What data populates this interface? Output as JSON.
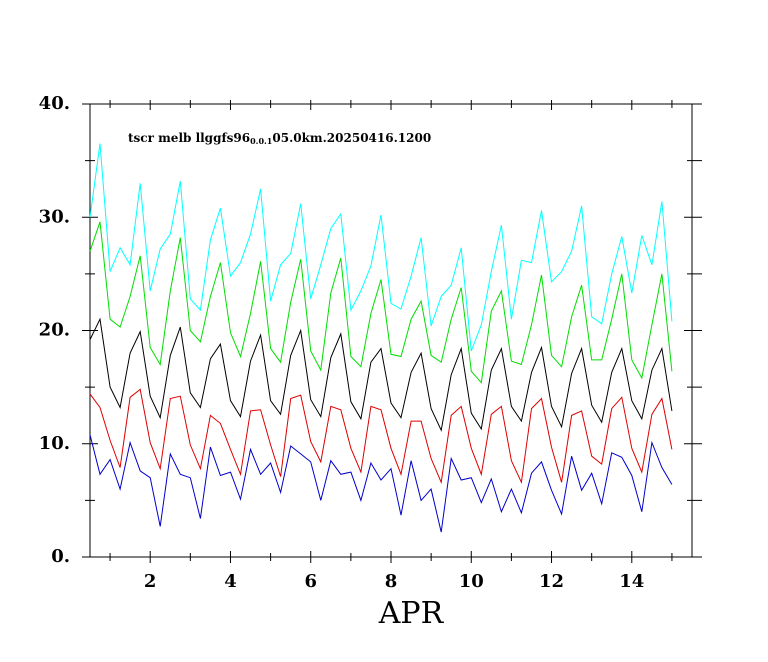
{
  "chart_data": {
    "type": "line",
    "title": {
      "before": "tscr melb llggfs96",
      "subscript": "0.0.1",
      "after": "05.0km.20250416.1200"
    },
    "xlabel": "APR",
    "xlim": [
      0.5,
      15.5
    ],
    "xticks": [
      2,
      4,
      6,
      8,
      10,
      12,
      14
    ],
    "xminor": [
      1,
      3,
      5,
      7,
      9,
      11,
      13,
      15
    ],
    "ylim": [
      0,
      40
    ],
    "yticks": [
      {
        "value": 0,
        "label": "0."
      },
      {
        "value": 10,
        "label": "10."
      },
      {
        "value": 20,
        "label": "20."
      },
      {
        "value": 30,
        "label": "30."
      },
      {
        "value": 40,
        "label": "40."
      }
    ],
    "yminor": [
      5,
      15,
      25,
      35
    ],
    "x": [
      0.5,
      0.75,
      1,
      1.25,
      1.5,
      1.75,
      2,
      2.25,
      2.5,
      2.75,
      3,
      3.25,
      3.5,
      3.75,
      4,
      4.25,
      4.5,
      4.75,
      5,
      5.25,
      5.5,
      5.75,
      6,
      6.25,
      6.5,
      6.75,
      7,
      7.25,
      7.5,
      7.75,
      8,
      8.25,
      8.5,
      8.75,
      9,
      9.25,
      9.5,
      9.75,
      10,
      10.25,
      10.5,
      10.75,
      11,
      11.25,
      11.5,
      11.75,
      12,
      12.25,
      12.5,
      12.75,
      13,
      13.25,
      13.5,
      13.75,
      14,
      14.25,
      14.5,
      14.75,
      15
    ],
    "series": [
      {
        "color": "#00ffff",
        "values": [
          30,
          36.5,
          25.2,
          27.3,
          25.8,
          33,
          23.5,
          27.2,
          28.5,
          33.2,
          22.8,
          21.8,
          28,
          30.8,
          24.8,
          26,
          28.5,
          32.5,
          22.6,
          25.8,
          26.8,
          31.2,
          22.8,
          25.8,
          29,
          30.3,
          21.8,
          23.5,
          25.7,
          30.2,
          22.4,
          21.9,
          24.8,
          28.2,
          20.4,
          23,
          24,
          27.3,
          18.2,
          20.5,
          25.2,
          29.3,
          21,
          26.2,
          26,
          30.6,
          24.3,
          25.2,
          27,
          31,
          21.2,
          20.6,
          25,
          28.3,
          23.3,
          28.4,
          25.8,
          31.4,
          20.8
        ]
      },
      {
        "color": "#00dd00",
        "values": [
          27,
          29.6,
          21,
          20.3,
          23,
          26.6,
          18.5,
          17,
          23.5,
          28.2,
          20,
          19,
          23,
          26,
          19.8,
          17.7,
          21.5,
          26.1,
          18.4,
          17.2,
          22.5,
          26.3,
          18.2,
          16.5,
          23.3,
          26.4,
          17.7,
          16.8,
          21.5,
          24.5,
          17.9,
          17.7,
          21,
          22.6,
          17.8,
          17.2,
          21,
          23.8,
          16.4,
          15.4,
          21.7,
          23.5,
          17.3,
          17,
          20.5,
          24.9,
          17.8,
          16.8,
          21.2,
          24,
          17.4,
          17.4,
          21,
          25,
          17.4,
          15.8,
          20.5,
          25,
          16.4
        ]
      },
      {
        "color": "#000000",
        "values": [
          19.2,
          21,
          15,
          13.2,
          18,
          19.9,
          14.2,
          12.3,
          17.8,
          20.3,
          14.5,
          13.2,
          17.5,
          18.8,
          13.8,
          12.4,
          17.3,
          19.6,
          13.8,
          12.6,
          17.8,
          20,
          13.9,
          12.4,
          17.6,
          19.7,
          13.7,
          12.2,
          17.2,
          18.4,
          13.6,
          12.3,
          16.3,
          18,
          13.1,
          11.2,
          16.1,
          18.4,
          12.7,
          11.3,
          16.5,
          18.4,
          13.3,
          12,
          16.3,
          18.5,
          13.3,
          11.5,
          16.2,
          18.4,
          13.4,
          11.9,
          16.3,
          18.4,
          13.8,
          12.2,
          16.5,
          18.4,
          12.9
        ]
      },
      {
        "color": "#dd0000",
        "values": [
          14.4,
          13.2,
          10.3,
          7.9,
          14.1,
          14.8,
          10.1,
          7.8,
          14,
          14.2,
          9.9,
          7.8,
          12.5,
          11.8,
          9.5,
          7.3,
          12.9,
          13,
          9.9,
          7.1,
          14,
          14.3,
          10.2,
          8.4,
          13.3,
          13,
          9.6,
          7.5,
          13.3,
          13,
          9.6,
          7.3,
          12,
          12,
          8.7,
          6.6,
          12.5,
          13.3,
          9.6,
          7.3,
          12.6,
          13.3,
          8.5,
          6.6,
          13.1,
          14,
          9.7,
          6.6,
          12.5,
          12.9,
          8.9,
          8.2,
          13.1,
          14.1,
          9.6,
          7.5,
          12.6,
          14,
          9.5
        ]
      },
      {
        "color": "#0000cc",
        "values": [
          10.8,
          7.3,
          8.6,
          6,
          10.1,
          7.6,
          7,
          2.7,
          9.1,
          7.3,
          7,
          3.4,
          9.7,
          7.2,
          7.5,
          5.1,
          9.5,
          7.3,
          8.3,
          5.7,
          9.8,
          9.1,
          8.4,
          5,
          8.5,
          7.3,
          7.5,
          5,
          8.3,
          6.8,
          7.8,
          3.7,
          8.5,
          5,
          6,
          2.2,
          8.7,
          6.8,
          7,
          4.8,
          6.9,
          4,
          6,
          3.9,
          7.4,
          8.4,
          5.9,
          3.8,
          8.9,
          5.9,
          7.4,
          4.7,
          9.2,
          8.8,
          7.2,
          4,
          10.1,
          7.9,
          6.4
        ]
      }
    ]
  }
}
